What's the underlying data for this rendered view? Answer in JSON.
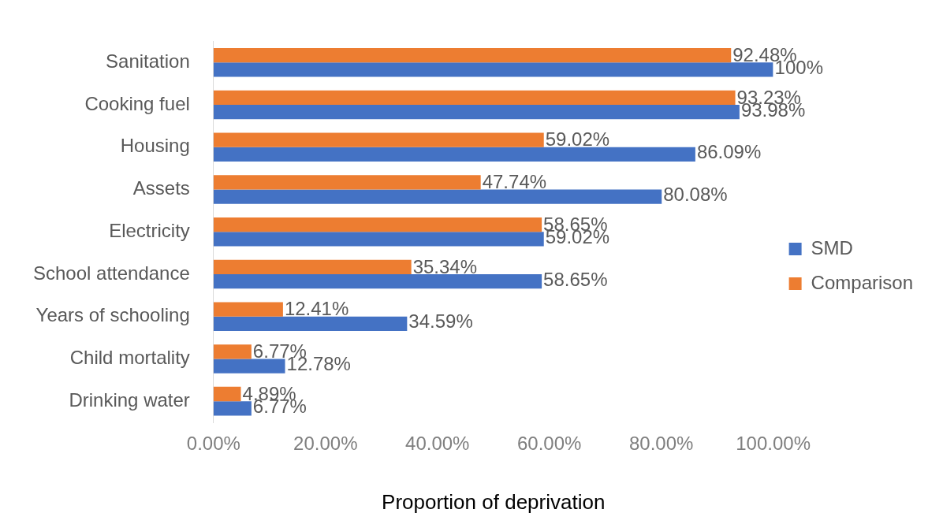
{
  "chart_data": {
    "type": "bar",
    "orientation": "horizontal",
    "xlabel": "Proportion of deprivation",
    "categories": [
      "Sanitation",
      "Cooking fuel",
      "Housing",
      "Assets",
      "Electricity",
      "School attendance",
      "Years of schooling",
      "Child mortality",
      "Drinking water"
    ],
    "series": [
      {
        "name": "Comparison",
        "color": "#ed7d31",
        "values": [
          92.48,
          93.23,
          59.02,
          47.74,
          58.65,
          35.34,
          12.41,
          6.77,
          4.89
        ],
        "value_labels": [
          "92.48%",
          "93.23%",
          "59.02%",
          "47.74%",
          "58.65%",
          "35.34%",
          "12.41%",
          "6.77%",
          "4.89%"
        ]
      },
      {
        "name": "SMD",
        "color": "#4472c4",
        "values": [
          100,
          93.98,
          86.09,
          80.08,
          59.02,
          58.65,
          34.59,
          12.78,
          6.77
        ],
        "value_labels": [
          "100%",
          "93.98%",
          "86.09%",
          "80.08%",
          "59.02%",
          "58.65%",
          "34.59%",
          "12.78%",
          "6.77%"
        ]
      }
    ],
    "xlim": [
      0,
      100
    ],
    "xticks": [
      {
        "value": 0,
        "label": "0.00%"
      },
      {
        "value": 20,
        "label": "20.00%"
      },
      {
        "value": 40,
        "label": "40.00%"
      },
      {
        "value": 60,
        "label": "60.00%"
      },
      {
        "value": 80,
        "label": "80.00%"
      },
      {
        "value": 100,
        "label": "100.00%"
      }
    ],
    "grid": false,
    "legend": "right"
  }
}
